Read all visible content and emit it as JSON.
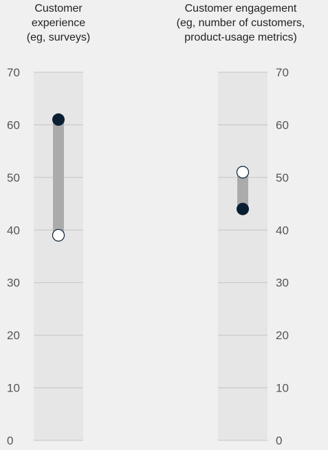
{
  "chart_data": {
    "type": "dumbbell",
    "ylim": [
      0,
      70
    ],
    "yticks": [
      0,
      10,
      20,
      30,
      40,
      50,
      60,
      70
    ],
    "grid": true,
    "colors": {
      "background": "#f0f0f0",
      "column_band": "#e6e6e6",
      "gridline": "#c4c4c4",
      "connector": "#ababab",
      "filled_marker": "#0b1f33",
      "open_marker": "#ffffff"
    },
    "columns": [
      {
        "title_lines": [
          "Customer",
          "experience",
          "(eg, surveys)"
        ],
        "filled_value": 61,
        "open_value": 39,
        "axis_side": "left"
      },
      {
        "title_lines": [
          "Customer engagement",
          "(eg, number of customers,",
          "product-usage metrics)"
        ],
        "filled_value": 44,
        "open_value": 51,
        "axis_side": "right"
      }
    ]
  }
}
